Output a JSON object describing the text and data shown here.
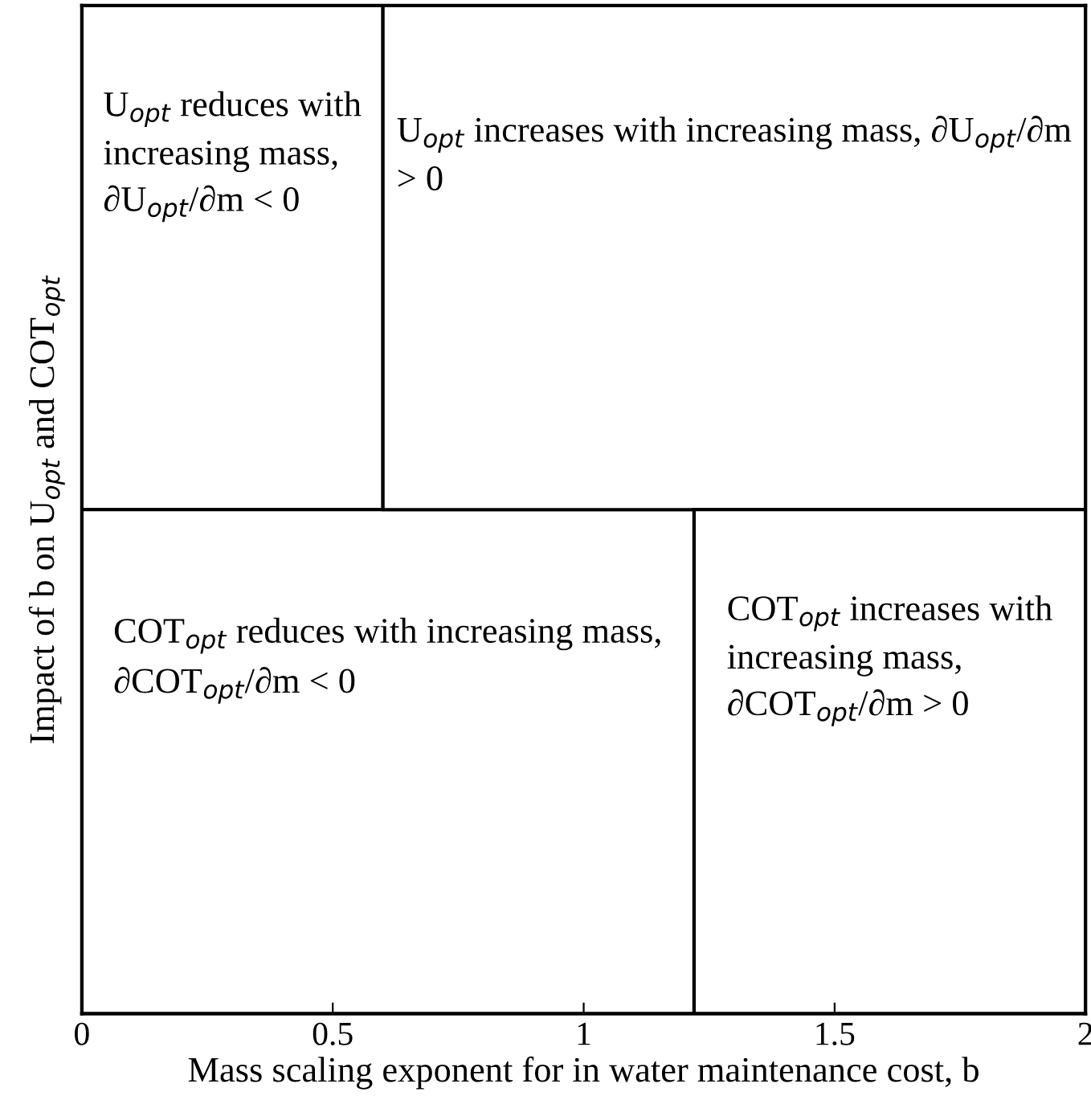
{
  "chart_data": {
    "type": "bar",
    "orientation": "horizontal",
    "stacked": true,
    "ylabel": "Impact of b on U$_{opt}$ and COT$_{opt}$",
    "xlabel": "Mass scaling exponent for in water maintenance cost, b",
    "categories": [
      null,
      null
    ],
    "xlim": [
      0,
      2
    ],
    "xticks": [
      0,
      0.5,
      1,
      1.5,
      2
    ],
    "series": [
      {
        "color": "#ffffff",
        "values": [
          0.6,
          1.22
        ]
      },
      {
        "color": "#ffffff",
        "values": [
          1.4,
          0.78
        ]
      }
    ],
    "annotations": [
      "U$_{opt}$ reduces with increasing mass, ∂U$_{opt}$/∂m < 0",
      "U$_{opt}$ increases with increasing mass, ∂U$_{opt}$/∂m > 0",
      "COT$_{opt}$ reduces with increasing mass, ∂COT$_{opt}$/∂m < 0",
      "COT$_{opt}$ increases with increasing mass, ∂COT$_{opt}$/∂m > 0"
    ]
  }
}
